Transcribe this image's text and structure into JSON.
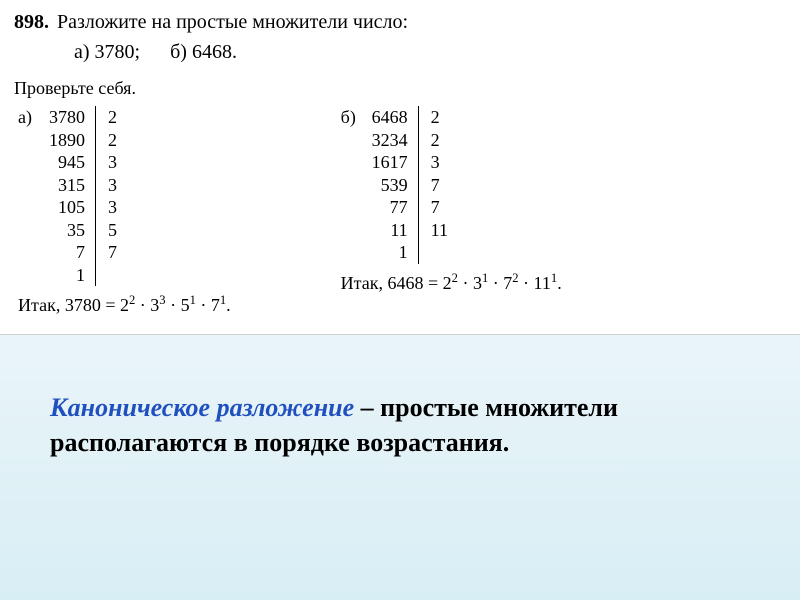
{
  "problem": {
    "number": "898.",
    "text": "Разложите на простые множители число:",
    "option_a_label": "а)",
    "option_a_value": "3780;",
    "option_b_label": "б)",
    "option_b_value": "6468."
  },
  "check_self": "Проверьте себя.",
  "solution_a": {
    "label": "а)",
    "left_col": [
      "3780",
      "1890",
      "945",
      "315",
      "105",
      "35",
      "7",
      "1"
    ],
    "right_col": [
      "2",
      "2",
      "3",
      "3",
      "3",
      "5",
      "7"
    ],
    "result_prefix": "Итак, 3780 = ",
    "result_terms": [
      {
        "base": "2",
        "exp": "2"
      },
      {
        "base": "3",
        "exp": "3"
      },
      {
        "base": "5",
        "exp": "1"
      },
      {
        "base": "7",
        "exp": "1"
      }
    ]
  },
  "solution_b": {
    "label": "б)",
    "left_col": [
      "6468",
      "3234",
      "1617",
      "539",
      "77",
      "11",
      "1"
    ],
    "right_col": [
      "2",
      "2",
      "3",
      "7",
      "7",
      "11"
    ],
    "result_prefix": "Итак, 6468 = ",
    "result_terms": [
      {
        "base": "2",
        "exp": "2"
      },
      {
        "base": "3",
        "exp": "1"
      },
      {
        "base": "7",
        "exp": "2"
      },
      {
        "base": "11",
        "exp": "1"
      }
    ]
  },
  "caption": {
    "title": "Каноническое разложение",
    "rest": " – простые множители располагаются в порядке возрастания."
  },
  "style": {
    "title_color": "#2050c0",
    "text_color": "#000000",
    "background_top": "#ffffff",
    "background_gradient_end": "#d8eef5",
    "font_family": "Times New Roman",
    "prob_fontsize": 20,
    "body_fontsize": 18,
    "caption_fontsize": 26
  }
}
